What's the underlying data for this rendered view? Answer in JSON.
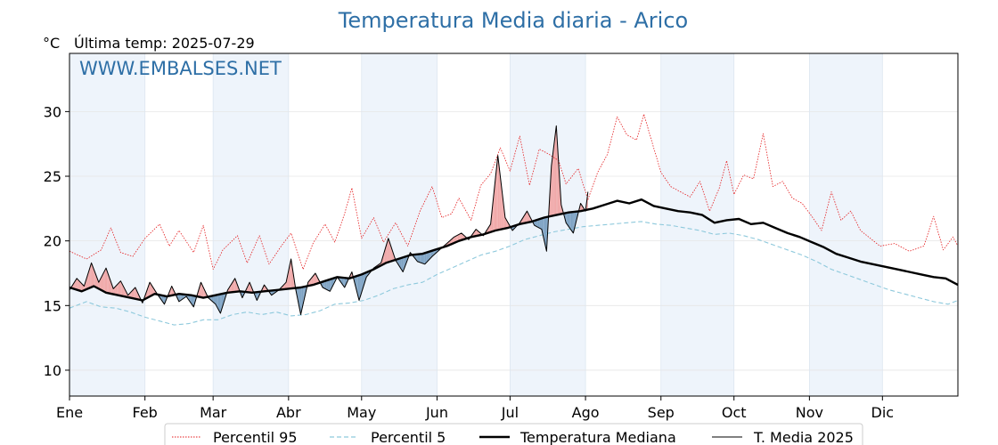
{
  "chart_data": {
    "type": "line",
    "title": "Temperatura Media diaria - Arico",
    "unit_label": "°C",
    "last_temp_label": "Última temp: 2025-07-29",
    "watermark": "WWW.EMBALSES.NET",
    "ylim": [
      8,
      34.5
    ],
    "yticks": [
      10,
      15,
      20,
      25,
      30
    ],
    "xlim": [
      1,
      366
    ],
    "month_labels": [
      "Ene",
      "Feb",
      "Mar",
      "Abr",
      "May",
      "Jun",
      "Jul",
      "Ago",
      "Sep",
      "Oct",
      "Nov",
      "Dic"
    ],
    "month_start_days": [
      1,
      32,
      60,
      91,
      121,
      152,
      182,
      213,
      244,
      274,
      305,
      335
    ],
    "grid": true,
    "legend_position": "bottom",
    "colors": {
      "p95": "#e41a1c",
      "p5": "#8ec9dc",
      "median": "#000000",
      "current": "#000000",
      "above_fill": "#f1a9a9",
      "below_fill": "#7ea3c4",
      "band": "#eef4fb",
      "title": "#2e6fa6"
    },
    "series": [
      {
        "name": "Percentil 95",
        "key": "p95",
        "style": "dotted",
        "points": [
          [
            1,
            19.2
          ],
          [
            8,
            18.6
          ],
          [
            14,
            19.3
          ],
          [
            18,
            21
          ],
          [
            22,
            19.1
          ],
          [
            27,
            18.8
          ],
          [
            32,
            20.2
          ],
          [
            38,
            21.3
          ],
          [
            42,
            19.6
          ],
          [
            46,
            20.8
          ],
          [
            52,
            19.1
          ],
          [
            56,
            21.2
          ],
          [
            60,
            17.8
          ],
          [
            64,
            19.3
          ],
          [
            70,
            20.4
          ],
          [
            74,
            18.3
          ],
          [
            79,
            20.4
          ],
          [
            83,
            18.2
          ],
          [
            88,
            19.6
          ],
          [
            92,
            20.6
          ],
          [
            97,
            17.8
          ],
          [
            101,
            19.8
          ],
          [
            106,
            21.3
          ],
          [
            110,
            19.9
          ],
          [
            114,
            22.1
          ],
          [
            117,
            24.1
          ],
          [
            121,
            20.2
          ],
          [
            126,
            21.8
          ],
          [
            130,
            19.9
          ],
          [
            135,
            21.4
          ],
          [
            140,
            19.6
          ],
          [
            145,
            22.3
          ],
          [
            150,
            24.2
          ],
          [
            154,
            21.8
          ],
          [
            158,
            22.1
          ],
          [
            161,
            23.3
          ],
          [
            166,
            21.6
          ],
          [
            170,
            24.3
          ],
          [
            174,
            25.2
          ],
          [
            178,
            27.2
          ],
          [
            182,
            25.4
          ],
          [
            186,
            28.1
          ],
          [
            190,
            24.3
          ],
          [
            194,
            27.1
          ],
          [
            198,
            26.7
          ],
          [
            202,
            26.2
          ],
          [
            205,
            24.4
          ],
          [
            210,
            25.6
          ],
          [
            214,
            23.2
          ],
          [
            218,
            25.3
          ],
          [
            222,
            26.7
          ],
          [
            226,
            29.6
          ],
          [
            230,
            28.2
          ],
          [
            234,
            27.8
          ],
          [
            237,
            29.8
          ],
          [
            241,
            27.2
          ],
          [
            244,
            25.3
          ],
          [
            248,
            24.2
          ],
          [
            252,
            23.8
          ],
          [
            256,
            23.4
          ],
          [
            260,
            24.6
          ],
          [
            264,
            22.3
          ],
          [
            268,
            24.1
          ],
          [
            271,
            26.2
          ],
          [
            274,
            23.6
          ],
          [
            278,
            25.1
          ],
          [
            282,
            24.8
          ],
          [
            286,
            28.3
          ],
          [
            290,
            24.2
          ],
          [
            294,
            24.6
          ],
          [
            298,
            23.3
          ],
          [
            302,
            22.9
          ],
          [
            306,
            21.9
          ],
          [
            310,
            20.8
          ],
          [
            314,
            23.8
          ],
          [
            318,
            21.6
          ],
          [
            322,
            22.3
          ],
          [
            326,
            20.8
          ],
          [
            330,
            20.2
          ],
          [
            334,
            19.6
          ],
          [
            340,
            19.8
          ],
          [
            346,
            19.2
          ],
          [
            352,
            19.6
          ],
          [
            356,
            21.9
          ],
          [
            360,
            19.3
          ],
          [
            364,
            20.3
          ],
          [
            366,
            19.6
          ]
        ]
      },
      {
        "name": "Percentil 5",
        "key": "p5",
        "style": "dashed",
        "points": [
          [
            1,
            14.8
          ],
          [
            8,
            15.3
          ],
          [
            14,
            14.9
          ],
          [
            20,
            14.8
          ],
          [
            26,
            14.5
          ],
          [
            32,
            14.1
          ],
          [
            38,
            13.8
          ],
          [
            44,
            13.5
          ],
          [
            50,
            13.6
          ],
          [
            56,
            13.9
          ],
          [
            62,
            13.9
          ],
          [
            68,
            14.3
          ],
          [
            74,
            14.5
          ],
          [
            80,
            14.3
          ],
          [
            86,
            14.5
          ],
          [
            92,
            14.2
          ],
          [
            98,
            14.3
          ],
          [
            104,
            14.6
          ],
          [
            110,
            15.1
          ],
          [
            116,
            15.2
          ],
          [
            122,
            15.4
          ],
          [
            128,
            15.8
          ],
          [
            134,
            16.3
          ],
          [
            140,
            16.6
          ],
          [
            146,
            16.8
          ],
          [
            152,
            17.4
          ],
          [
            158,
            17.9
          ],
          [
            164,
            18.4
          ],
          [
            170,
            18.9
          ],
          [
            176,
            19.2
          ],
          [
            182,
            19.6
          ],
          [
            188,
            20.1
          ],
          [
            194,
            20.4
          ],
          [
            200,
            20.7
          ],
          [
            206,
            20.9
          ],
          [
            212,
            21.1
          ],
          [
            218,
            21.2
          ],
          [
            224,
            21.3
          ],
          [
            230,
            21.4
          ],
          [
            236,
            21.5
          ],
          [
            242,
            21.3
          ],
          [
            248,
            21.2
          ],
          [
            254,
            21.0
          ],
          [
            260,
            20.8
          ],
          [
            266,
            20.5
          ],
          [
            272,
            20.6
          ],
          [
            278,
            20.4
          ],
          [
            284,
            20.1
          ],
          [
            290,
            19.7
          ],
          [
            296,
            19.3
          ],
          [
            302,
            18.9
          ],
          [
            308,
            18.4
          ],
          [
            314,
            17.8
          ],
          [
            320,
            17.4
          ],
          [
            326,
            17.0
          ],
          [
            332,
            16.6
          ],
          [
            338,
            16.2
          ],
          [
            344,
            15.9
          ],
          [
            350,
            15.6
          ],
          [
            356,
            15.3
          ],
          [
            362,
            15.1
          ],
          [
            366,
            15.4
          ]
        ]
      },
      {
        "name": "Temperatura Mediana",
        "key": "median",
        "style": "solid-thick",
        "points": [
          [
            1,
            16.4
          ],
          [
            6,
            16.1
          ],
          [
            11,
            16.5
          ],
          [
            16,
            16.0
          ],
          [
            21,
            15.8
          ],
          [
            26,
            15.6
          ],
          [
            31,
            15.4
          ],
          [
            36,
            15.9
          ],
          [
            41,
            15.7
          ],
          [
            46,
            15.9
          ],
          [
            51,
            15.8
          ],
          [
            56,
            15.6
          ],
          [
            61,
            15.8
          ],
          [
            66,
            16.0
          ],
          [
            71,
            16.1
          ],
          [
            76,
            16.0
          ],
          [
            81,
            16.1
          ],
          [
            86,
            16.2
          ],
          [
            91,
            16.3
          ],
          [
            96,
            16.4
          ],
          [
            101,
            16.6
          ],
          [
            106,
            16.9
          ],
          [
            111,
            17.2
          ],
          [
            116,
            17.1
          ],
          [
            121,
            17.4
          ],
          [
            126,
            17.8
          ],
          [
            131,
            18.3
          ],
          [
            136,
            18.6
          ],
          [
            141,
            18.9
          ],
          [
            146,
            19.0
          ],
          [
            151,
            19.3
          ],
          [
            156,
            19.6
          ],
          [
            161,
            20.0
          ],
          [
            166,
            20.3
          ],
          [
            171,
            20.5
          ],
          [
            176,
            20.8
          ],
          [
            181,
            21.0
          ],
          [
            186,
            21.3
          ],
          [
            191,
            21.5
          ],
          [
            196,
            21.8
          ],
          [
            201,
            22.0
          ],
          [
            206,
            22.2
          ],
          [
            211,
            22.3
          ],
          [
            216,
            22.5
          ],
          [
            221,
            22.8
          ],
          [
            226,
            23.1
          ],
          [
            231,
            22.9
          ],
          [
            236,
            23.2
          ],
          [
            241,
            22.7
          ],
          [
            246,
            22.5
          ],
          [
            251,
            22.3
          ],
          [
            256,
            22.2
          ],
          [
            261,
            22.0
          ],
          [
            266,
            21.4
          ],
          [
            271,
            21.6
          ],
          [
            276,
            21.7
          ],
          [
            281,
            21.3
          ],
          [
            286,
            21.4
          ],
          [
            291,
            21.0
          ],
          [
            296,
            20.6
          ],
          [
            301,
            20.3
          ],
          [
            306,
            19.9
          ],
          [
            311,
            19.5
          ],
          [
            316,
            19.0
          ],
          [
            321,
            18.7
          ],
          [
            326,
            18.4
          ],
          [
            331,
            18.2
          ],
          [
            336,
            18.0
          ],
          [
            341,
            17.8
          ],
          [
            346,
            17.6
          ],
          [
            351,
            17.4
          ],
          [
            356,
            17.2
          ],
          [
            361,
            17.1
          ],
          [
            366,
            16.6
          ]
        ]
      },
      {
        "name": "T. Media 2025",
        "key": "current",
        "style": "solid-thin",
        "points": [
          [
            1,
            16.2
          ],
          [
            4,
            17.1
          ],
          [
            7,
            16.5
          ],
          [
            10,
            18.3
          ],
          [
            13,
            16.8
          ],
          [
            16,
            17.9
          ],
          [
            19,
            16.3
          ],
          [
            22,
            16.9
          ],
          [
            25,
            15.8
          ],
          [
            28,
            16.4
          ],
          [
            31,
            15.2
          ],
          [
            34,
            16.8
          ],
          [
            37,
            15.9
          ],
          [
            40,
            15.1
          ],
          [
            43,
            16.5
          ],
          [
            46,
            15.3
          ],
          [
            49,
            15.7
          ],
          [
            52,
            14.9
          ],
          [
            55,
            16.8
          ],
          [
            58,
            15.6
          ],
          [
            61,
            15.1
          ],
          [
            63,
            14.4
          ],
          [
            66,
            16.2
          ],
          [
            69,
            17.1
          ],
          [
            72,
            15.6
          ],
          [
            75,
            16.8
          ],
          [
            78,
            15.4
          ],
          [
            81,
            16.6
          ],
          [
            84,
            15.8
          ],
          [
            87,
            16.2
          ],
          [
            90,
            16.8
          ],
          [
            92,
            18.6
          ],
          [
            94,
            16.2
          ],
          [
            96,
            14.3
          ],
          [
            99,
            16.8
          ],
          [
            102,
            17.5
          ],
          [
            105,
            16.4
          ],
          [
            108,
            16.1
          ],
          [
            111,
            17.2
          ],
          [
            114,
            16.4
          ],
          [
            117,
            17.6
          ],
          [
            120,
            15.4
          ],
          [
            123,
            17.2
          ],
          [
            126,
            17.9
          ],
          [
            129,
            18.3
          ],
          [
            132,
            20.2
          ],
          [
            135,
            18.5
          ],
          [
            138,
            17.6
          ],
          [
            141,
            19.1
          ],
          [
            144,
            18.4
          ],
          [
            147,
            18.2
          ],
          [
            150,
            18.8
          ],
          [
            153,
            19.3
          ],
          [
            156,
            19.8
          ],
          [
            159,
            20.3
          ],
          [
            162,
            20.6
          ],
          [
            165,
            20.1
          ],
          [
            168,
            20.9
          ],
          [
            171,
            20.4
          ],
          [
            174,
            21.3
          ],
          [
            177,
            26.6
          ],
          [
            180,
            21.8
          ],
          [
            183,
            20.8
          ],
          [
            186,
            21.4
          ],
          [
            189,
            22.3
          ],
          [
            192,
            21.2
          ],
          [
            195,
            20.9
          ],
          [
            197,
            19.2
          ],
          [
            199,
            25.8
          ],
          [
            201,
            28.9
          ],
          [
            203,
            22.8
          ],
          [
            205,
            21.4
          ],
          [
            208,
            20.6
          ],
          [
            211,
            22.9
          ],
          [
            213,
            22.3
          ],
          [
            214,
            23.8
          ]
        ]
      }
    ]
  },
  "legend": {
    "items": [
      "Percentil 95",
      "Percentil 5",
      "Temperatura Mediana",
      "T. Media 2025"
    ]
  }
}
